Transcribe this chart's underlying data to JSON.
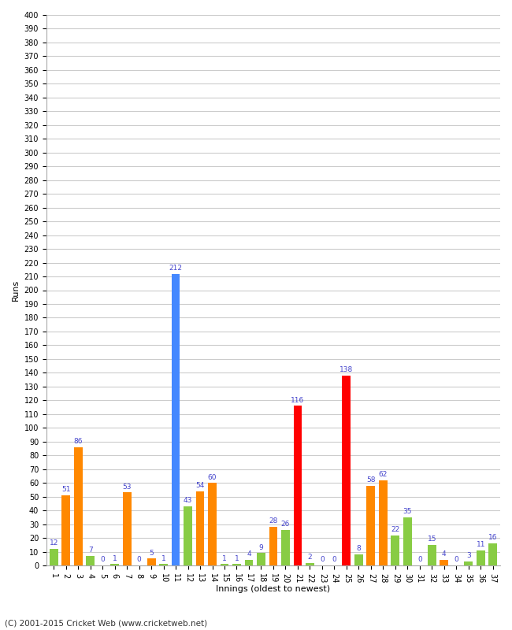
{
  "xlabel": "Innings (oldest to newest)",
  "ylabel": "Runs",
  "footer": "(C) 2001-2015 Cricket Web (www.cricketweb.net)",
  "ylim": [
    0,
    400
  ],
  "yticks": [
    0,
    10,
    20,
    30,
    40,
    50,
    60,
    70,
    80,
    90,
    100,
    110,
    120,
    130,
    140,
    150,
    160,
    170,
    180,
    190,
    200,
    210,
    220,
    230,
    240,
    250,
    260,
    270,
    280,
    290,
    300,
    310,
    320,
    330,
    340,
    350,
    360,
    370,
    380,
    390,
    400
  ],
  "innings_labels": [
    "1",
    "2",
    "3",
    "4",
    "5",
    "6",
    "7",
    "8",
    "9",
    "10",
    "11",
    "12",
    "13",
    "14",
    "15",
    "16",
    "17",
    "18",
    "19",
    "20",
    "21",
    "22",
    "23",
    "24",
    "25",
    "26",
    "27",
    "28",
    "29",
    "30",
    "31",
    "32",
    "33",
    "34",
    "35",
    "36",
    "37"
  ],
  "values": [
    12,
    51,
    86,
    7,
    0,
    1,
    53,
    0,
    5,
    1,
    212,
    43,
    54,
    60,
    1,
    1,
    4,
    9,
    28,
    26,
    116,
    2,
    0,
    0,
    138,
    8,
    58,
    62,
    22,
    35,
    0,
    15,
    4,
    0,
    3,
    11,
    16
  ],
  "colors": [
    "#88cc44",
    "#ff8800",
    "#ff8800",
    "#88cc44",
    "#88cc44",
    "#88cc44",
    "#ff8800",
    "#88cc44",
    "#ff8800",
    "#88cc44",
    "#4488ff",
    "#88cc44",
    "#ff8800",
    "#ff8800",
    "#88cc44",
    "#88cc44",
    "#88cc44",
    "#88cc44",
    "#ff8800",
    "#88cc44",
    "#ff0000",
    "#88cc44",
    "#88cc44",
    "#88cc44",
    "#ff0000",
    "#88cc44",
    "#ff8800",
    "#ff8800",
    "#88cc44",
    "#88cc44",
    "#88cc44",
    "#88cc44",
    "#ff8800",
    "#88cc44",
    "#88cc44",
    "#88cc44",
    "#88cc44"
  ],
  "background_color": "#ffffff",
  "grid_color": "#cccccc",
  "label_color": "#4444cc",
  "bar_width": 0.7,
  "fig_width": 6.5,
  "fig_height": 8.0,
  "dpi": 100
}
